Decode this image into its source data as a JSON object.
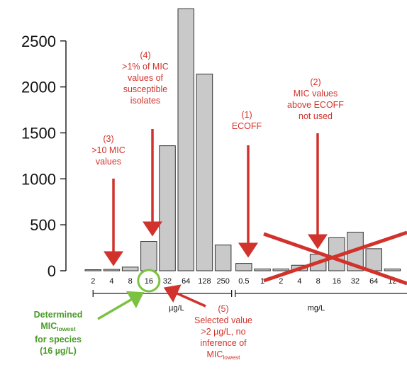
{
  "chart_data": {
    "type": "bar",
    "y_ticks": [
      0,
      500,
      1000,
      1500,
      2000,
      2500
    ],
    "ylim": [
      0,
      2850
    ],
    "grid": false,
    "groups": [
      {
        "unit": "µg/L",
        "categories": [
          "2",
          "4",
          "8",
          "16",
          "32",
          "64",
          "128",
          "250"
        ],
        "values": [
          5,
          15,
          40,
          320,
          1360,
          2850,
          2140,
          280
        ]
      },
      {
        "unit": "mg/L",
        "categories": [
          "0.5",
          "1",
          "2",
          "4",
          "8",
          "16",
          "32",
          "64",
          "12"
        ],
        "values": [
          80,
          20,
          20,
          60,
          180,
          360,
          420,
          240,
          20
        ]
      }
    ],
    "annotations": [
      {
        "id": "ann1",
        "lines": [
          "(1)",
          "ECOFF"
        ],
        "color": "#d1322b"
      },
      {
        "id": "ann2",
        "lines": [
          "(2)",
          "MIC values",
          "above ECOFF",
          "not used"
        ],
        "color": "#d1322b"
      },
      {
        "id": "ann3",
        "lines": [
          "(3)",
          ">10 MIC",
          "values"
        ],
        "color": "#d1322b"
      },
      {
        "id": "ann4",
        "lines": [
          "(4)",
          ">1% of MIC",
          "values of",
          "susceptible",
          "isolates"
        ],
        "color": "#d1322b"
      },
      {
        "id": "ann5",
        "lines": [
          "(5)",
          "Selected value",
          ">2 µg/L, no",
          "inference of",
          "MIClowest"
        ],
        "color": "#d1322b"
      },
      {
        "id": "ann_green",
        "lines": [
          "Determined",
          "MIClowest",
          "for species",
          "(16 µg/L)"
        ],
        "color": "#4a9a2a"
      }
    ]
  }
}
